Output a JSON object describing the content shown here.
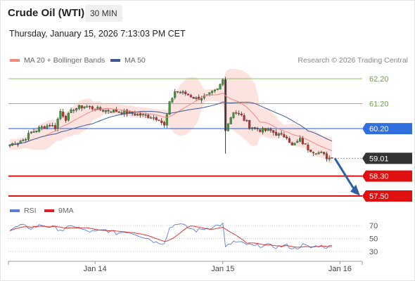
{
  "header": {
    "title": "Crude Oil (WTI)",
    "timeframe": "30 MIN",
    "datetime": "Thursday, January 15, 2026 7:13:03 PM CET",
    "credit": "Research © 2026 Trading Central"
  },
  "legend": {
    "ma20_label": "MA 20 + Bollinger Bands",
    "ma20_color": "#f08a80",
    "ma50_label": "MA 50",
    "ma50_color": "#3a5a9a"
  },
  "rsi_legend": {
    "rsi_label": "RSI",
    "rsi_color": "#5b7fd6",
    "ma9_label": "9MA",
    "ma9_color": "#e02020"
  },
  "chart_data": [
    {
      "type": "line",
      "subtype": "candlestick",
      "title": "Crude Oil (WTI)",
      "ylim": [
        57.3,
        62.5
      ],
      "x_ticks": [
        {
          "label": "Jan 14",
          "index": 32
        },
        {
          "label": "Jan 15",
          "index": 80
        },
        {
          "label": "Jan 16",
          "index": 124
        }
      ],
      "bar_count": 128,
      "levels": [
        {
          "value": 62.2,
          "label": "62.20",
          "style": "resistance",
          "color": "#8fc46a"
        },
        {
          "value": 61.2,
          "label": "61.20",
          "style": "resistance",
          "color": "#8fc46a"
        },
        {
          "value": 60.2,
          "label": "60.20",
          "style": "pivot",
          "color": "#2f6fe0"
        },
        {
          "value": 59.01,
          "label": "59.01",
          "style": "last",
          "color": "#333333"
        },
        {
          "value": 58.3,
          "label": "58.30",
          "style": "support",
          "color": "#e01010"
        },
        {
          "value": 57.5,
          "label": "57.50",
          "style": "support",
          "color": "#e01010"
        }
      ],
      "closes_knots": [
        [
          0,
          59.55
        ],
        [
          5,
          59.75
        ],
        [
          8,
          60.05
        ],
        [
          12,
          60.25
        ],
        [
          15,
          60.35
        ],
        [
          17,
          60.25
        ],
        [
          19,
          60.9
        ],
        [
          21,
          60.6
        ],
        [
          24,
          61.0
        ],
        [
          28,
          61.1
        ],
        [
          34,
          60.95
        ],
        [
          40,
          60.9
        ],
        [
          46,
          60.8
        ],
        [
          52,
          60.7
        ],
        [
          56,
          60.6
        ],
        [
          58,
          60.3
        ],
        [
          60,
          61.2
        ],
        [
          62,
          61.7
        ],
        [
          66,
          61.6
        ],
        [
          70,
          61.4
        ],
        [
          74,
          61.5
        ],
        [
          78,
          61.75
        ],
        [
          80,
          62.15
        ],
        [
          81,
          60.2
        ],
        [
          84,
          60.9
        ],
        [
          87,
          60.7
        ],
        [
          90,
          60.3
        ],
        [
          94,
          60.15
        ],
        [
          98,
          60.1
        ],
        [
          102,
          59.9
        ],
        [
          104,
          59.9
        ],
        [
          106,
          59.5
        ],
        [
          109,
          59.75
        ],
        [
          112,
          59.4
        ],
        [
          114,
          59.3
        ],
        [
          117,
          59.2
        ],
        [
          119,
          59.05
        ],
        [
          121,
          59.01
        ]
      ],
      "series": [
        {
          "name": "MA 20 + Bollinger Bands"
        },
        {
          "name": "MA 50"
        }
      ]
    },
    {
      "type": "line",
      "title": "RSI",
      "ylim": [
        20,
        80
      ],
      "y_ticks": [
        70,
        50,
        30
      ],
      "rsi_knots": [
        [
          0,
          63
        ],
        [
          4,
          70
        ],
        [
          8,
          66
        ],
        [
          12,
          71
        ],
        [
          16,
          67
        ],
        [
          20,
          63
        ],
        [
          24,
          70
        ],
        [
          28,
          62
        ],
        [
          32,
          60
        ],
        [
          36,
          63
        ],
        [
          40,
          58
        ],
        [
          44,
          61
        ],
        [
          48,
          56
        ],
        [
          52,
          50
        ],
        [
          55,
          44
        ],
        [
          58,
          44
        ],
        [
          60,
          66
        ],
        [
          63,
          74
        ],
        [
          66,
          68
        ],
        [
          70,
          62
        ],
        [
          74,
          66
        ],
        [
          78,
          70
        ],
        [
          80,
          72
        ],
        [
          81,
          36
        ],
        [
          84,
          45
        ],
        [
          88,
          42
        ],
        [
          92,
          38
        ],
        [
          96,
          40
        ],
        [
          100,
          37
        ],
        [
          104,
          39
        ],
        [
          107,
          34
        ],
        [
          110,
          40
        ],
        [
          113,
          36
        ],
        [
          116,
          39
        ],
        [
          119,
          37
        ],
        [
          121,
          38
        ]
      ],
      "series": [
        {
          "name": "RSI"
        },
        {
          "name": "9MA"
        }
      ]
    }
  ]
}
